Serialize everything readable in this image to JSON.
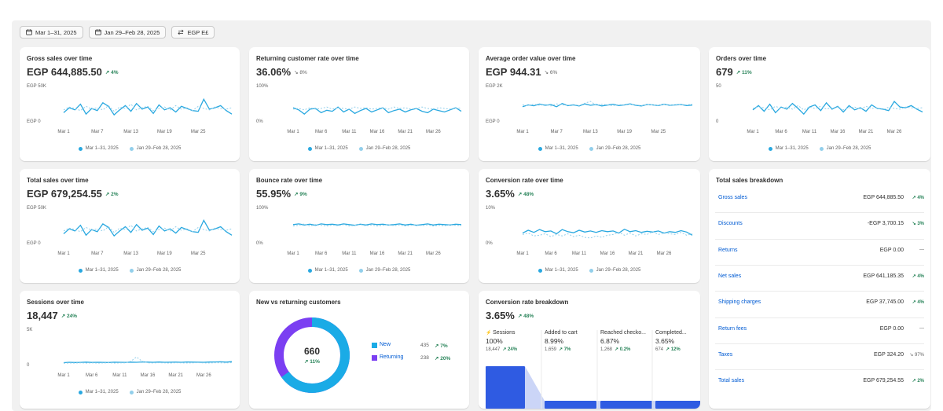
{
  "filters": [
    {
      "label": "Mar 1–31, 2025",
      "icon": "calendar-icon"
    },
    {
      "label": "Jan 29–Feb 28, 2025",
      "icon": "calendar-compare-icon"
    },
    {
      "label": "EGP E£",
      "icon": "currency-icon"
    }
  ],
  "colors": {
    "primary": "#29a8e0",
    "comparison": "#92cfeb",
    "positive": "#29845a",
    "link": "#005bd3",
    "funnel": "#2f5be2",
    "funnel_light": "#a9b9f2",
    "donut_new": "#1aabe6",
    "donut_returning": "#7b3ff2"
  },
  "legend": {
    "current": "Mar 1–31, 2025",
    "previous": "Jan 29–Feb 28, 2025"
  },
  "cards": {
    "gross_sales": {
      "title": "Gross sales over time",
      "value": "EGP 644,885.50",
      "delta": "↗ 4%",
      "y_top": "EGP 50K",
      "y_bottom": "EGP 0",
      "ticks": [
        "Mar 1",
        "Mar 7",
        "Mar 13",
        "Mar 19",
        "Mar 25"
      ]
    },
    "returning_rate": {
      "title": "Returning customer rate over time",
      "value": "36.06%",
      "delta": "↘ 8%",
      "y_top": "100%",
      "y_bottom": "0%",
      "ticks": [
        "Mar 1",
        "Mar 6",
        "Mar 11",
        "Mar 16",
        "Mar 21",
        "Mar 26"
      ]
    },
    "aov": {
      "title": "Average order value over time",
      "value": "EGP 944.31",
      "delta": "↘ 6%",
      "y_top": "EGP 2K",
      "y_bottom": "EGP 0",
      "ticks": [
        "Mar 1",
        "Mar 7",
        "Mar 13",
        "Mar 19",
        "Mar 25"
      ]
    },
    "orders": {
      "title": "Orders over time",
      "value": "679",
      "delta": "↗ 11%",
      "y_top": "50",
      "y_bottom": "0",
      "ticks": [
        "Mar 1",
        "Mar 6",
        "Mar 11",
        "Mar 16",
        "Mar 21",
        "Mar 26"
      ]
    },
    "total_sales": {
      "title": "Total sales over time",
      "value": "EGP 679,254.55",
      "delta": "↗ 2%",
      "y_top": "EGP 50K",
      "y_bottom": "EGP 0",
      "ticks": [
        "Mar 1",
        "Mar 7",
        "Mar 13",
        "Mar 19",
        "Mar 25"
      ]
    },
    "bounce_rate": {
      "title": "Bounce rate over time",
      "value": "55.95%",
      "delta": "↗ 9%",
      "y_top": "100%",
      "y_bottom": "0%",
      "ticks": [
        "Mar 1",
        "Mar 6",
        "Mar 11",
        "Mar 16",
        "Mar 21",
        "Mar 26"
      ]
    },
    "conversion_rate": {
      "title": "Conversion rate over time",
      "value": "3.65%",
      "delta": "↗ 48%",
      "y_top": "10%",
      "y_bottom": "0%",
      "ticks": [
        "Mar 1",
        "Mar 6",
        "Mar 11",
        "Mar 16",
        "Mar 21",
        "Mar 26"
      ]
    },
    "sessions": {
      "title": "Sessions over time",
      "value": "18,447",
      "delta": "↗ 24%",
      "y_top": "5K",
      "y_bottom": "0",
      "ticks": [
        "Mar 1",
        "Mar 6",
        "Mar 11",
        "Mar 16",
        "Mar 21",
        "Mar 26"
      ]
    }
  },
  "new_vs_returning": {
    "title": "New vs returning customers",
    "center_value": "660",
    "center_delta": "↗ 11%",
    "items": [
      {
        "label": "New",
        "value": "435",
        "delta": "↗ 7%"
      },
      {
        "label": "Returning",
        "value": "238",
        "delta": "↗ 20%"
      }
    ],
    "new_fraction": 0.65
  },
  "conversion_breakdown": {
    "title": "Conversion rate breakdown",
    "value": "3.65%",
    "delta": "↗ 48%",
    "steps": [
      {
        "label": "Sessions",
        "percent": "100%",
        "count": "18,447",
        "delta": "↗ 24%",
        "fraction": 1.0
      },
      {
        "label": "Added to cart",
        "percent": "8.99%",
        "count": "1,659",
        "delta": "↗ 7%",
        "fraction": 0.15
      },
      {
        "label": "Reached checko...",
        "percent": "6.87%",
        "count": "1,268",
        "delta": "↗ 0.2%",
        "fraction": 0.13
      },
      {
        "label": "Completed...",
        "percent": "3.65%",
        "count": "674",
        "delta": "↗ 12%",
        "fraction": 0.09
      }
    ]
  },
  "total_sales_breakdown": {
    "title": "Total sales breakdown",
    "rows": [
      {
        "label": "Gross sales",
        "value": "EGP 644,885.50",
        "delta": "↗ 4%",
        "type": "up"
      },
      {
        "label": "Discounts",
        "value": "-EGP 3,700.15",
        "delta": "↘ 3%",
        "type": "up"
      },
      {
        "label": "Returns",
        "value": "EGP 0.00",
        "delta": "—",
        "type": "none"
      },
      {
        "label": "Net sales",
        "value": "EGP 641,185.35",
        "delta": "↗ 4%",
        "type": "up"
      },
      {
        "label": "Shipping charges",
        "value": "EGP 37,745.00",
        "delta": "↗ 4%",
        "type": "up"
      },
      {
        "label": "Return fees",
        "value": "EGP 0.00",
        "delta": "—",
        "type": "none"
      },
      {
        "label": "Taxes",
        "value": "EGP 324.20",
        "delta": "↘ 97%",
        "type": "none"
      },
      {
        "label": "Total sales",
        "value": "EGP 679,254.55",
        "delta": "↗ 2%",
        "type": "up"
      }
    ]
  },
  "chart_data": [
    {
      "type": "line",
      "title": "Gross sales over time",
      "ylim": [
        0,
        50000
      ],
      "series": [
        {
          "name": "Mar 1–31, 2025",
          "values": [
            14000,
            21000,
            18000,
            26000,
            12000,
            20000,
            17000,
            28000,
            23000,
            11000,
            18000,
            24000,
            16000,
            27000,
            19000,
            22000,
            13000,
            25000,
            18000,
            21000,
            15000,
            23000,
            20000,
            17000,
            16000,
            33000,
            19000,
            21000,
            24000,
            17000,
            12000
          ]
        },
        {
          "name": "Jan 29–Feb 28, 2025",
          "values": [
            18000,
            22000,
            20000,
            17000,
            23000,
            19000,
            21000,
            18000,
            24000,
            16000,
            22000,
            20000,
            26000,
            18000,
            21000,
            23000,
            17000,
            20000,
            22000,
            18000,
            24000,
            19000,
            21000,
            17000,
            23000,
            20000,
            18000,
            22000,
            20000,
            19000,
            21000
          ]
        }
      ]
    },
    {
      "type": "line",
      "title": "Returning customer rate over time",
      "ylim": [
        0,
        100
      ],
      "series": [
        {
          "name": "Mar 1–31, 2025",
          "values": [
            42,
            36,
            24,
            38,
            40,
            28,
            35,
            32,
            44,
            30,
            38,
            26,
            34,
            40,
            30,
            36,
            42,
            28,
            34,
            38,
            30,
            36,
            40,
            32,
            28,
            38,
            34,
            30,
            36,
            42,
            32
          ]
        },
        {
          "name": "Jan 29–Feb 28, 2025",
          "values": [
            38,
            40,
            36,
            42,
            38,
            40,
            44,
            38,
            42,
            40,
            38,
            44,
            40,
            42,
            38,
            40,
            42,
            38,
            44,
            40,
            42,
            38,
            40,
            44,
            40,
            38,
            42,
            40,
            38,
            42,
            40
          ]
        }
      ]
    },
    {
      "type": "line",
      "title": "Average order value over time",
      "ylim": [
        0,
        2000
      ],
      "series": [
        {
          "name": "Mar 1–31, 2025",
          "values": [
            900,
            1000,
            950,
            1050,
            980,
            1020,
            900,
            1080,
            960,
            1000,
            940,
            1060,
            980,
            1020,
            940,
            990,
            1040,
            960,
            1000,
            1060,
            980,
            940,
            1020,
            1000,
            960,
            1040,
            980,
            1000,
            1020,
            960,
            990
          ]
        },
        {
          "name": "Jan 29–Feb 28, 2025",
          "values": [
            1000,
            960,
            1040,
            980,
            1020,
            940,
            1060,
            1000,
            980,
            1020,
            960,
            1100,
            1200,
            980,
            1040,
            1000,
            960,
            1020,
            980,
            1040,
            1000,
            960,
            1020,
            1000,
            980,
            1040,
            1000,
            980,
            1020,
            1000,
            1040
          ]
        }
      ]
    },
    {
      "type": "line",
      "title": "Orders over time",
      "ylim": [
        0,
        50
      ],
      "series": [
        {
          "name": "Mar 1–31, 2025",
          "values": [
            18,
            24,
            16,
            26,
            14,
            22,
            19,
            27,
            20,
            12,
            22,
            25,
            17,
            28,
            19,
            23,
            15,
            24,
            18,
            21,
            16,
            25,
            20,
            19,
            17,
            30,
            22,
            21,
            24,
            19,
            15
          ]
        },
        {
          "name": "Jan 29–Feb 28, 2025",
          "values": [
            20,
            22,
            21,
            18,
            23,
            20,
            22,
            19,
            24,
            18,
            22,
            20,
            23,
            19,
            21,
            22,
            18,
            21,
            22,
            19,
            23,
            20,
            21,
            18,
            22,
            20,
            19,
            22,
            21,
            20,
            21
          ]
        }
      ]
    },
    {
      "type": "line",
      "title": "Total sales over time",
      "ylim": [
        0,
        50000
      ],
      "series": [
        {
          "name": "Mar 1–31, 2025",
          "values": [
            15000,
            22000,
            19000,
            27000,
            13000,
            21000,
            18000,
            29000,
            24000,
            12000,
            19000,
            25000,
            17000,
            28000,
            20000,
            23000,
            14000,
            26000,
            19000,
            22000,
            16000,
            24000,
            21000,
            18000,
            17000,
            34000,
            20000,
            22000,
            25000,
            18000,
            13000
          ]
        },
        {
          "name": "Jan 29–Feb 28, 2025",
          "values": [
            19000,
            23000,
            21000,
            18000,
            24000,
            20000,
            22000,
            19000,
            25000,
            17000,
            23000,
            21000,
            27000,
            19000,
            22000,
            24000,
            18000,
            21000,
            23000,
            19000,
            25000,
            20000,
            22000,
            18000,
            24000,
            21000,
            19000,
            23000,
            21000,
            20000,
            22000
          ]
        }
      ]
    },
    {
      "type": "line",
      "title": "Bounce rate over time",
      "ylim": [
        0,
        100
      ],
      "series": [
        {
          "name": "Mar 1–31, 2025",
          "values": [
            56,
            58,
            55,
            57,
            54,
            58,
            56,
            57,
            55,
            58,
            56,
            54,
            57,
            55,
            58,
            56,
            57,
            55,
            56,
            58,
            55,
            57,
            54,
            56,
            58,
            55,
            57,
            56,
            55,
            57,
            56
          ]
        },
        {
          "name": "Jan 29–Feb 28, 2025",
          "values": [
            52,
            54,
            58,
            52,
            56,
            54,
            52,
            55,
            53,
            56,
            52,
            54,
            56,
            53,
            55,
            52,
            54,
            56,
            53,
            55,
            52,
            54,
            56,
            53,
            55,
            52,
            54,
            53,
            55,
            54,
            53
          ]
        }
      ]
    },
    {
      "type": "line",
      "title": "Conversion rate over time",
      "ylim": [
        0,
        10
      ],
      "series": [
        {
          "name": "Mar 1–31, 2025",
          "values": [
            3.2,
            4.0,
            3.4,
            4.2,
            3.6,
            3.8,
            3.0,
            4.2,
            3.6,
            3.3,
            4.0,
            3.5,
            3.8,
            3.4,
            3.9,
            3.6,
            3.8,
            3.2,
            4.3,
            3.6,
            3.9,
            3.4,
            3.7,
            3.5,
            3.8,
            3.2,
            3.6,
            3.4,
            3.9,
            3.5,
            2.6
          ]
        },
        {
          "name": "Jan 29–Feb 28, 2025",
          "values": [
            2.8,
            3.2,
            2.4,
            2.6,
            3.0,
            2.2,
            2.8,
            2.4,
            3.0,
            2.2,
            2.6,
            2.0,
            1.8,
            2.4,
            2.0,
            2.6,
            2.8,
            3.4,
            2.6,
            3.2,
            2.4,
            3.0,
            2.8,
            3.6,
            2.8,
            3.2,
            3.0,
            2.8,
            3.4,
            2.6,
            3.0
          ]
        }
      ]
    },
    {
      "type": "line",
      "title": "Sessions over time",
      "ylim": [
        0,
        5000
      ],
      "series": [
        {
          "name": "Mar 1–31, 2025",
          "values": [
            500,
            560,
            520,
            540,
            580,
            530,
            560,
            540,
            520,
            570,
            560,
            540,
            580,
            560,
            600,
            580,
            560,
            590,
            550,
            570,
            580,
            560,
            600,
            580,
            570,
            560,
            590,
            600,
            620,
            580,
            640
          ]
        },
        {
          "name": "Jan 29–Feb 28, 2025",
          "values": [
            420,
            460,
            440,
            480,
            450,
            470,
            440,
            460,
            490,
            450,
            470,
            480,
            700,
            1300,
            700,
            480,
            460,
            500,
            470,
            450,
            490,
            470,
            460,
            480,
            500,
            470,
            460,
            490,
            480,
            470,
            500
          ]
        }
      ]
    }
  ]
}
